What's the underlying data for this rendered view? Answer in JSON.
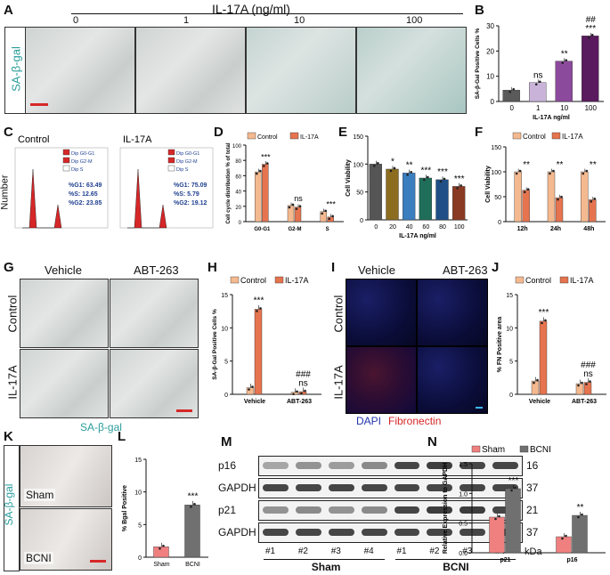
{
  "panelA": {
    "label": "A",
    "title": "IL-17A (ng/ml)",
    "doses": [
      "0",
      "1",
      "10",
      "100"
    ],
    "stain": "SA-β-gal"
  },
  "panelB": {
    "label": "B",
    "chart_data": {
      "type": "bar",
      "ylabel": "SA-β-Gal Positive Cells %",
      "xlabel": "IL-17A ng/ml",
      "categories": [
        "0",
        "1",
        "10",
        "100"
      ],
      "values": [
        4.5,
        7.5,
        16,
        26
      ],
      "ylim": [
        0,
        30
      ],
      "yticks": [
        "0",
        "10",
        "20",
        "30"
      ],
      "sig": [
        "",
        "ns",
        "**",
        "***"
      ],
      "sig2": [
        "",
        "",
        "",
        "##"
      ],
      "colors": [
        "#5a5a5a",
        "#c9b3d9",
        "#8c4a9c",
        "#5a1a5e"
      ]
    }
  },
  "panelC": {
    "label": "C",
    "ylabel": "Number",
    "groups": [
      {
        "name": "Control",
        "legend": [
          "Dip G0-G1",
          "Dip G2-M",
          "Dip S"
        ],
        "stats": [
          "%G1: 63.49",
          "%S: 12.65",
          "%G2: 23.85"
        ]
      },
      {
        "name": "IL-17A",
        "legend": [
          "Dip G0-G1",
          "Dip G2-M",
          "Dip S"
        ],
        "stats": [
          "%G1: 75.09",
          "%S: 5.79",
          "%G2: 19.12"
        ]
      }
    ]
  },
  "panelD": {
    "label": "D",
    "chart_data": {
      "type": "bar",
      "ylabel": "Cell cycle distribution % of total",
      "categories": [
        "G0-G1",
        "G2-M",
        "S"
      ],
      "series": [
        {
          "name": "Control",
          "values": [
            65,
            21,
            13
          ]
        },
        {
          "name": "IL-17A",
          "values": [
            75,
            19,
            6
          ]
        }
      ],
      "ylim": [
        0,
        100
      ],
      "yticks": [
        "0",
        "20",
        "40",
        "60",
        "80",
        "100"
      ],
      "sig": [
        "***",
        "ns",
        "***"
      ]
    }
  },
  "panelE": {
    "label": "E",
    "chart_data": {
      "type": "bar",
      "ylabel": "Cell Viability",
      "xlabel": "IL-17A ng/ml",
      "categories": [
        "0",
        "20",
        "40",
        "60",
        "80",
        "100"
      ],
      "values": [
        100,
        91,
        84,
        75,
        72,
        60
      ],
      "ylim": [
        0,
        150
      ],
      "yticks": [
        "0",
        "50",
        "100",
        "150"
      ],
      "sig": [
        "",
        "*",
        "**",
        "***",
        "***",
        "***"
      ],
      "colors": [
        "#555555",
        "#8c6d1f",
        "#3a7ebf",
        "#1f6e5a",
        "#1f4f86",
        "#8a3a22"
      ]
    }
  },
  "panelF": {
    "label": "F",
    "chart_data": {
      "type": "bar",
      "ylabel": "Cell Viability",
      "categories": [
        "12h",
        "24h",
        "48h"
      ],
      "series": [
        {
          "name": "Control",
          "values": [
            100,
            100,
            100
          ]
        },
        {
          "name": "IL-17A",
          "values": [
            63,
            48,
            44
          ]
        }
      ],
      "ylim": [
        0,
        150
      ],
      "yticks": [
        "0",
        "50",
        "100",
        "150"
      ],
      "sig": [
        "**",
        "**",
        "**"
      ]
    }
  },
  "panelG": {
    "label": "G",
    "cols": [
      "Vehicle",
      "ABT-263"
    ],
    "rows": [
      "Control",
      "IL-17A"
    ],
    "stain": "SA-β-gal"
  },
  "panelH": {
    "label": "H",
    "chart_data": {
      "type": "bar",
      "ylabel": "SA-β-Gal Positive Cells %",
      "categories": [
        "Vehicle",
        "ABT-263"
      ],
      "series": [
        {
          "name": "Control",
          "values": [
            1,
            0.3
          ]
        },
        {
          "name": "IL-17A",
          "values": [
            12.8,
            0.4
          ]
        }
      ],
      "ylim": [
        0,
        15
      ],
      "yticks": [
        "0",
        "5",
        "10",
        "15"
      ],
      "sig": [
        "***",
        "ns"
      ],
      "sig2": [
        "",
        "###"
      ]
    }
  },
  "panelI": {
    "label": "I",
    "cols": [
      "Vehicle",
      "ABT-263"
    ],
    "rows": [
      "Control",
      "IL-17A"
    ],
    "stain_a": "DAPI",
    "stain_b": "Fibronectin"
  },
  "panelJ": {
    "label": "J",
    "chart_data": {
      "type": "bar",
      "ylabel": "% FN Positive area",
      "categories": [
        "Vehicle",
        "ABT-263"
      ],
      "series": [
        {
          "name": "Control",
          "values": [
            2,
            1.6
          ]
        },
        {
          "name": "IL-17A",
          "values": [
            11,
            1.8
          ]
        }
      ],
      "ylim": [
        0,
        15
      ],
      "yticks": [
        "0",
        "5",
        "10",
        "15"
      ],
      "sig": [
        "***",
        "ns"
      ],
      "sig2": [
        "",
        "###"
      ]
    }
  },
  "panelK": {
    "label": "K",
    "stain": "SA-β-gal",
    "rows": [
      "Sham",
      "BCNI"
    ]
  },
  "panelL": {
    "label": "L",
    "chart_data": {
      "type": "bar",
      "ylabel": "% Bgal Positive",
      "categories": [
        "Sham",
        "BCNI"
      ],
      "values": [
        1.6,
        8
      ],
      "ylim": [
        0,
        15
      ],
      "yticks": [
        "0",
        "5",
        "10",
        "15"
      ],
      "sig": [
        "",
        "***"
      ],
      "colors": [
        "#f08080",
        "#707070"
      ]
    }
  },
  "panelM": {
    "label": "M",
    "proteins": [
      {
        "name": "p16",
        "kda": "16"
      },
      {
        "name": "GAPDH",
        "kda": "37"
      },
      {
        "name": "p21",
        "kda": "21"
      },
      {
        "name": "GAPDH",
        "kda": "37"
      }
    ],
    "lanes": [
      "#1",
      "#2",
      "#3",
      "#4",
      "#1",
      "#2",
      "#3",
      "#4"
    ],
    "kda_label": "kDa",
    "groups": [
      "Sham",
      "BCNI"
    ]
  },
  "panelN": {
    "label": "N",
    "chart_data": {
      "type": "bar",
      "ylabel": "Relative Expression to GAPDH",
      "categories": [
        "p21",
        "p16"
      ],
      "series": [
        {
          "name": "Sham",
          "values": [
            0.6,
            0.27
          ]
        },
        {
          "name": "BCNI",
          "values": [
            1.08,
            0.63
          ]
        }
      ],
      "ylim": [
        0,
        1.5
      ],
      "yticks": [
        "0.0",
        "0.5",
        "1.0",
        "1.5"
      ],
      "sig": [
        "***",
        "**"
      ]
    }
  },
  "colors": {
    "control": "#f5b98f",
    "il17a": "#e5744f",
    "sham": "#f08080",
    "bcni": "#707070",
    "teal": "#2a9d9b",
    "red": "#d62728"
  }
}
